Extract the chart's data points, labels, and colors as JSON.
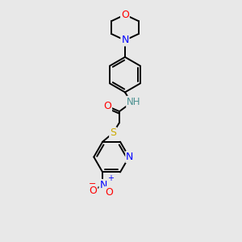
{
  "bg_color": "#e8e8e8",
  "bond_color": "#000000",
  "atom_colors": {
    "O": "#ff0000",
    "N": "#0000ff",
    "S": "#ccaa00",
    "NH": "#4a9090",
    "H": "#4a9090"
  },
  "figsize": [
    3.0,
    3.0
  ],
  "dpi": 100,
  "lw": 1.4
}
